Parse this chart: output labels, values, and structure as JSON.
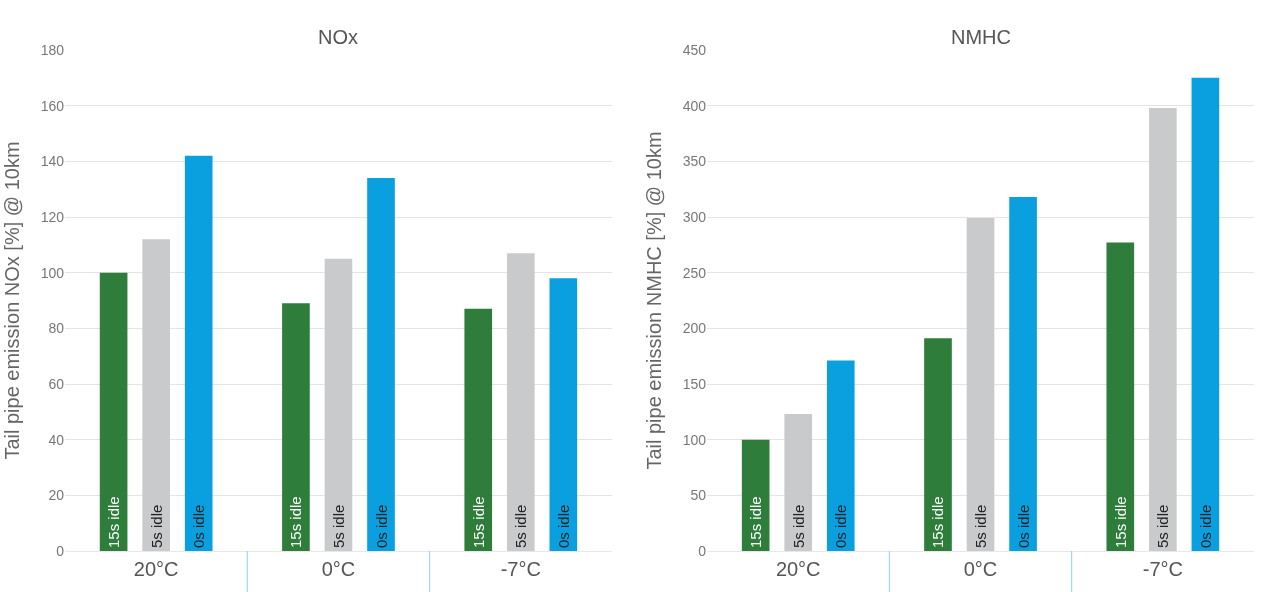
{
  "chart_data": [
    {
      "type": "bar",
      "title": "NOx",
      "ylabel": "Tail pipe emission NOx [%] @ 10km",
      "categories": [
        "20°C",
        "0°C",
        "-7°C"
      ],
      "ylim": [
        0,
        180
      ],
      "yticks": [
        0,
        20,
        40,
        60,
        80,
        100,
        120,
        140,
        160,
        180
      ],
      "grid": "y",
      "legend": false,
      "series": [
        {
          "name": "15s idle",
          "color": "#2e7d3a",
          "values": [
            100,
            89,
            87
          ]
        },
        {
          "name": "5s idle",
          "color": "#c8cacc",
          "values": [
            112,
            105,
            107
          ]
        },
        {
          "name": "0s idle",
          "color": "#0aa0e0",
          "values": [
            142,
            134,
            98
          ]
        }
      ]
    },
    {
      "type": "bar",
      "title": "NMHC",
      "ylabel": "Tail pipe emission NMHC [%] @ 10km",
      "categories": [
        "20°C",
        "0°C",
        "-7°C"
      ],
      "ylim": [
        0,
        450
      ],
      "yticks": [
        0,
        50,
        100,
        150,
        200,
        250,
        300,
        350,
        400,
        450
      ],
      "grid": "y",
      "legend": false,
      "series": [
        {
          "name": "15s idle",
          "color": "#2e7d3a",
          "values": [
            100,
            191,
            277
          ]
        },
        {
          "name": "5s idle",
          "color": "#c8cacc",
          "values": [
            123,
            299,
            398
          ]
        },
        {
          "name": "0s idle",
          "color": "#0aa0e0",
          "values": [
            171,
            318,
            425
          ]
        }
      ]
    }
  ]
}
